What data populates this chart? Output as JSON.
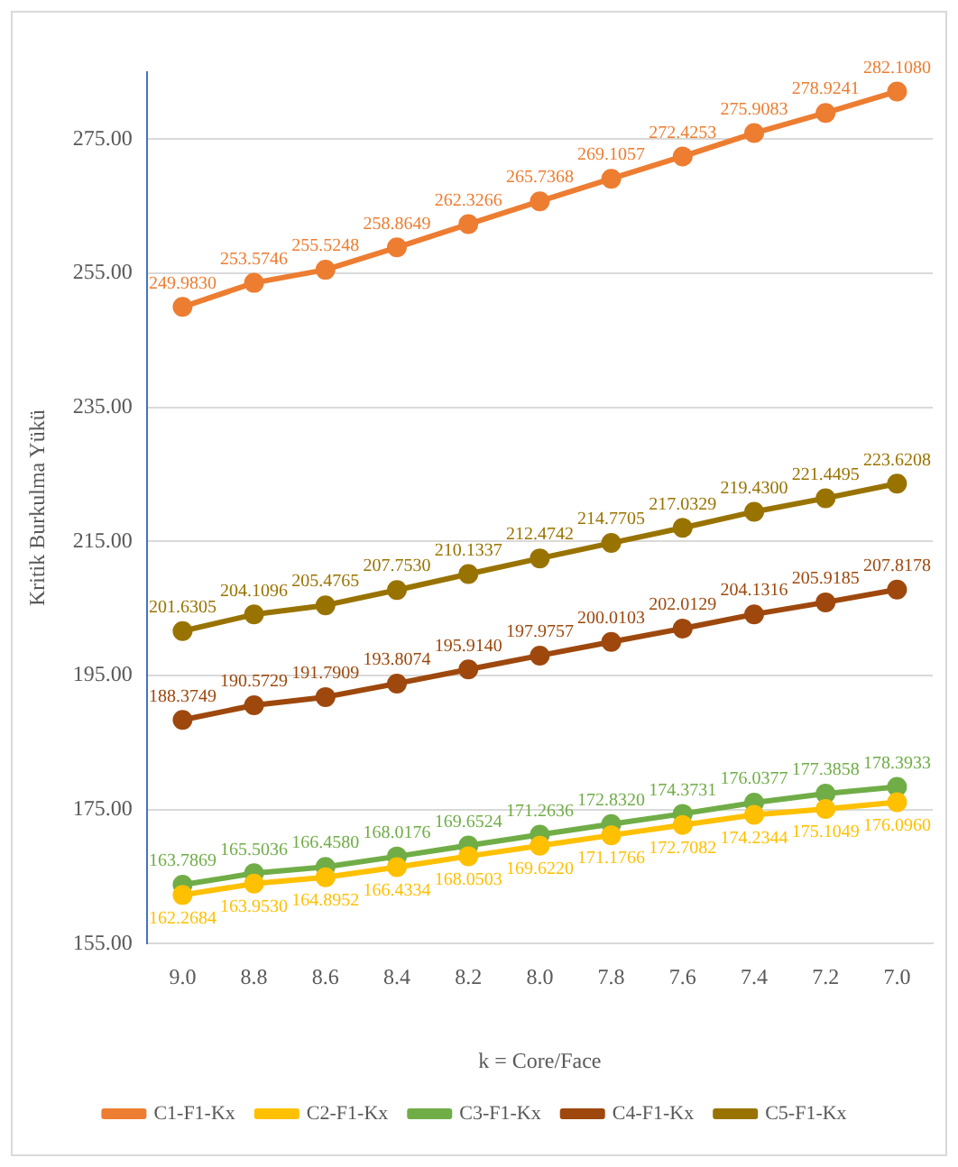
{
  "chart_data": {
    "type": "line",
    "xlabel": "k = Core/Face",
    "ylabel": "Kritik Burkulma Yükü",
    "categories": [
      "9.0",
      "8.8",
      "8.6",
      "8.4",
      "8.2",
      "8.0",
      "7.8",
      "7.6",
      "7.4",
      "7.2",
      "7.0"
    ],
    "series": [
      {
        "name": "C1-F1-Kx",
        "color": "#ed7d31",
        "values": [
          249.983,
          253.5746,
          255.5248,
          258.8649,
          262.3266,
          265.7368,
          269.1057,
          272.4253,
          275.9083,
          278.9241,
          282.108
        ],
        "value_labels": [
          "249.9830",
          "253.5746",
          "255.5248",
          "258.8649",
          "262.3266",
          "265.7368",
          "269.1057",
          "272.4253",
          "275.9083",
          "278.9241",
          "282.1080"
        ]
      },
      {
        "name": "C2-F1-Kx",
        "color": "#ffc000",
        "values": [
          162.2684,
          163.953,
          164.8952,
          166.4334,
          168.0503,
          169.622,
          171.1766,
          172.7082,
          174.2344,
          175.1049,
          176.096
        ],
        "value_labels": [
          "162.2684",
          "163.9530",
          "164.8952",
          "166.4334",
          "168.0503",
          "169.6220",
          "171.1766",
          "172.7082",
          "174.2344",
          "175.1049",
          "176.0960"
        ]
      },
      {
        "name": "C3-F1-Kx",
        "color": "#70ad47",
        "values": [
          163.7869,
          165.5036,
          166.458,
          168.0176,
          169.6524,
          171.2636,
          172.832,
          174.3731,
          176.0377,
          177.3858,
          178.3933
        ],
        "value_labels": [
          "163.7869",
          "165.5036",
          "166.4580",
          "168.0176",
          "169.6524",
          "171.2636",
          "172.8320",
          "174.3731",
          "176.0377",
          "177.3858",
          "178.3933"
        ]
      },
      {
        "name": "C4-F1-Kx",
        "color": "#9e480e",
        "values": [
          188.3749,
          190.5729,
          191.7909,
          193.8074,
          195.914,
          197.9757,
          200.0103,
          202.0129,
          204.1316,
          205.9185,
          207.8178
        ],
        "value_labels": [
          "188.3749",
          "190.5729",
          "191.7909",
          "193.8074",
          "195.9140",
          "197.9757",
          "200.0103",
          "202.0129",
          "204.1316",
          "205.9185",
          "207.8178"
        ]
      },
      {
        "name": "C5-F1-Kx",
        "color": "#997300",
        "values": [
          201.6305,
          204.1096,
          205.4765,
          207.753,
          210.1337,
          212.4742,
          214.7705,
          217.0329,
          219.43,
          221.4495,
          223.6208
        ],
        "value_labels": [
          "201.6305",
          "204.1096",
          "205.4765",
          "207.7530",
          "210.1337",
          "212.4742",
          "214.7705",
          "217.0329",
          "219.4300",
          "221.4495",
          "223.6208"
        ]
      }
    ],
    "ylim": [
      155,
      285
    ],
    "yticks": [
      {
        "value": 155,
        "label": "155.00"
      },
      {
        "value": 175,
        "label": "175.00"
      },
      {
        "value": 195,
        "label": "195.00"
      },
      {
        "value": 215,
        "label": "215.00"
      },
      {
        "value": 235,
        "label": "235.00"
      },
      {
        "value": 255,
        "label": "255.00"
      },
      {
        "value": 275,
        "label": "275.00"
      }
    ],
    "grid": "y",
    "legend": "bottom",
    "marker": "circle",
    "line_style": "solid"
  }
}
